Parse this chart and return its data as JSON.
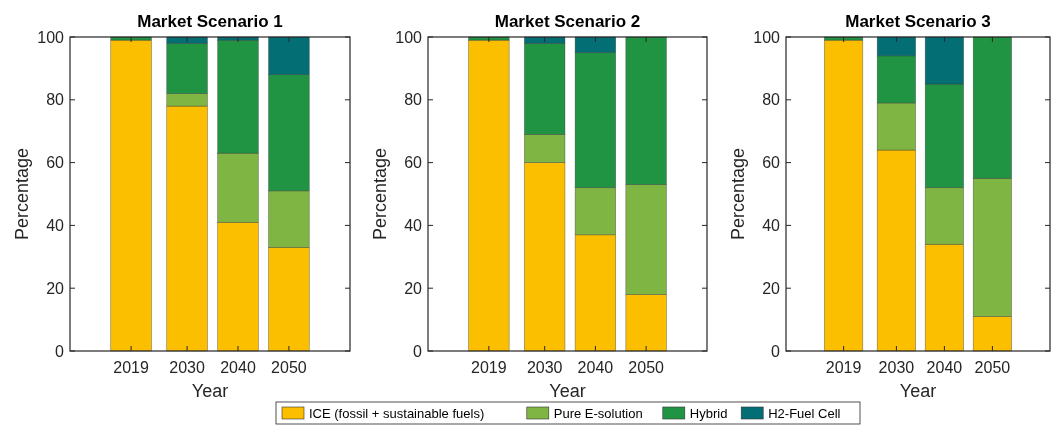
{
  "chart_data": [
    {
      "type": "bar",
      "stacked": true,
      "title": "Market Scenario 1",
      "xlabel": "Year",
      "ylabel": "Percentage",
      "x": [
        2019,
        2030,
        2040,
        2050
      ],
      "xlim": [
        2007,
        2062
      ],
      "xticks": [
        2019,
        2030,
        2040,
        2050
      ],
      "ylim": [
        0,
        100
      ],
      "yticks": [
        0,
        20,
        40,
        60,
        80,
        100
      ],
      "legend": "bottom",
      "series": [
        {
          "name": "ICE (fossil + sustainable fuels)",
          "color": "#fbbf00",
          "values": [
            99,
            78,
            41,
            33
          ]
        },
        {
          "name": "Pure E-solution",
          "color": "#7fb543",
          "values": [
            0,
            4,
            22,
            18
          ]
        },
        {
          "name": "Hybrid",
          "color": "#219443",
          "values": [
            1,
            16,
            36,
            37
          ]
        },
        {
          "name": "H2-Fuel Cell",
          "color": "#036e74",
          "values": [
            0,
            2,
            1,
            12
          ]
        }
      ]
    },
    {
      "type": "bar",
      "stacked": true,
      "title": "Market Scenario 2",
      "xlabel": "Year",
      "ylabel": "Percentage",
      "x": [
        2019,
        2030,
        2040,
        2050
      ],
      "xlim": [
        2007,
        2062
      ],
      "xticks": [
        2019,
        2030,
        2040,
        2050
      ],
      "ylim": [
        0,
        100
      ],
      "yticks": [
        0,
        20,
        40,
        60,
        80,
        100
      ],
      "series": [
        {
          "color": "#fbbf00",
          "values": [
            99,
            60,
            37,
            18
          ]
        },
        {
          "color": "#7fb543",
          "values": [
            0,
            9,
            15,
            35
          ]
        },
        {
          "color": "#219443",
          "values": [
            1,
            29,
            43,
            47
          ]
        },
        {
          "color": "#036e74",
          "values": [
            0,
            2,
            5,
            0
          ]
        }
      ]
    },
    {
      "type": "bar",
      "stacked": true,
      "title": "Market Scenario 3",
      "xlabel": "Year",
      "ylabel": "Percentage",
      "x": [
        2019,
        2030,
        2040,
        2050
      ],
      "xlim": [
        2007,
        2062
      ],
      "xticks": [
        2019,
        2030,
        2040,
        2050
      ],
      "ylim": [
        0,
        100
      ],
      "yticks": [
        0,
        20,
        40,
        60,
        80,
        100
      ],
      "series": [
        {
          "color": "#fbbf00",
          "values": [
            99,
            64,
            34,
            11
          ]
        },
        {
          "color": "#7fb543",
          "values": [
            0,
            15,
            18,
            44
          ]
        },
        {
          "color": "#219443",
          "values": [
            1,
            15,
            33,
            45
          ]
        },
        {
          "color": "#036e74",
          "values": [
            0,
            6,
            15,
            0
          ]
        }
      ]
    }
  ]
}
